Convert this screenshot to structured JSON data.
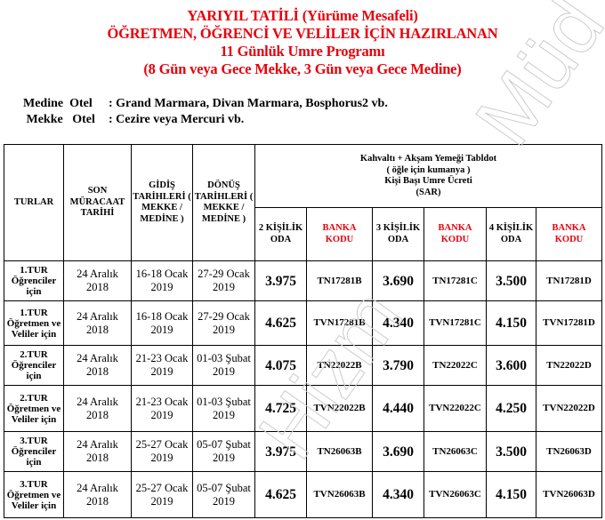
{
  "title_lines": [
    "YARIYIL TATİLİ (Yürüme Mesafeli)",
    "ÖĞRETMEN, ÖĞRENCİ VE VELİLER İÇİN HAZIRLANAN",
    "11 Günlük Umre Programı",
    "(8 Gün veya Gece Mekke, 3 Gün veya Gece Medine)"
  ],
  "hotels": [
    {
      "label": "Medine  Otel",
      "value": ": Grand Marmara, Divan Marmara, Bosphorus2 vb."
    },
    {
      "label": " Mekke   Otel",
      "value": ": Cezire veya Mercuri vb."
    }
  ],
  "colors": {
    "accent_red": "#e8000b"
  },
  "table": {
    "headers": {
      "turlar": "TURLAR",
      "son_muracaat": "SON MÜRACAAT TARİHİ",
      "gidis": "GİDİŞ TARİHLERİ ( MEKKE / MEDİNE )",
      "donus": "DÖNÜŞ TARİHLERİ ( MEKKE / MEDİNE )",
      "group_line1": "Kahvaltı + Akşam Yemeği Tabldot",
      "group_line2": "( öğle için kumanya )",
      "group_line3": "Kişi Başı Umre Ücreti",
      "group_line4": "(SAR)",
      "room2": "2 KİŞİLİK ODA",
      "room3": "3 KİŞİLİK ODA",
      "room4": "4 KİŞİLİK ODA",
      "bank_code": "BANKA KODU"
    },
    "rows": [
      {
        "tur": "1.TUR Öğrenciler için",
        "son": "24 Aralık 2018",
        "gidis": "16-18 Ocak 2019",
        "donus": "27-29 Ocak 2019",
        "p2": "3.975",
        "c2": "TN17281B",
        "p3": "3.690",
        "c3": "TN17281C",
        "p4": "3.500",
        "c4": "TN17281D"
      },
      {
        "tur": "1.TUR Öğretmen ve Veliler için",
        "son": "24 Aralık 2018",
        "gidis": "16-18 Ocak 2019",
        "donus": "27-29 Ocak 2019",
        "p2": "4.625",
        "c2": "TVN17281B",
        "p3": "4.340",
        "c3": "TVN17281C",
        "p4": "4.150",
        "c4": "TVN17281D"
      },
      {
        "tur": "2.TUR Öğrenciler için",
        "son": "24 Aralık 2018",
        "gidis": "21-23 Ocak 2019",
        "donus": "01-03 Şubat 2019",
        "p2": "4.075",
        "c2": "TN22022B",
        "p3": "3.790",
        "c3": "TN22022C",
        "p4": "3.600",
        "c4": "TN22022D"
      },
      {
        "tur": "2.TUR Öğretmen ve Veliler için",
        "son": "24 Aralık 2018",
        "gidis": "21-23 Ocak 2019",
        "donus": "01-03 Şubat 2019",
        "p2": "4.725",
        "c2": "TVN22022B",
        "p3": "4.440",
        "c3": "TVN22022C",
        "p4": "4.250",
        "c4": "TVN22022D"
      },
      {
        "tur": "3.TUR Öğrenciler için",
        "son": "24 Aralık 2018",
        "gidis": "25-27 Ocak 2019",
        "donus": "05-07 Şubat 2019",
        "p2": "3.975",
        "c2": "TN26063B",
        "p3": "3.690",
        "c3": "TN26063C",
        "p4": "3.500",
        "c4": "TN26063D"
      },
      {
        "tur": "3.TUR Öğretmen ve Veliler için",
        "son": "24 Aralık 2018",
        "gidis": "25-27 Ocak 2019",
        "donus": "05-07 Şubat 2019",
        "p2": "4.625",
        "c2": "TVN26063B",
        "p3": "4.340",
        "c3": "TVN26063C",
        "p4": "4.150",
        "c4": "TVN26063D"
      }
    ]
  }
}
